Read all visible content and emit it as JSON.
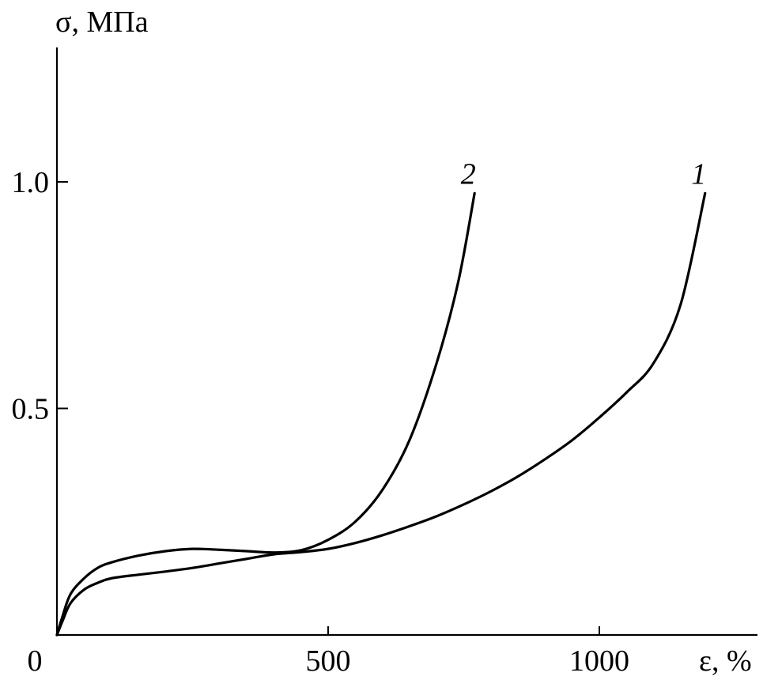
{
  "chart_data": {
    "type": "line",
    "title": "",
    "xlabel": "ε, %",
    "ylabel": "σ, МПа",
    "xlim": [
      0,
      1270
    ],
    "ylim": [
      0,
      1.3
    ],
    "x_ticks": [
      0,
      500,
      1000
    ],
    "x_tick_labels": [
      "0",
      "500",
      "1000"
    ],
    "y_ticks": [
      0.5,
      1.0
    ],
    "y_tick_labels": [
      "0.5",
      "1.0"
    ],
    "grid": false,
    "legend": "none (curves labeled inline)",
    "series": [
      {
        "name": "1",
        "x": [
          0,
          10,
          25,
          50,
          75,
          100,
          150,
          200,
          250,
          300,
          350,
          400,
          450,
          500,
          550,
          600,
          650,
          700,
          750,
          800,
          850,
          900,
          950,
          1000,
          1050,
          1100,
          1150,
          1195
        ],
        "y": [
          0,
          0.03,
          0.07,
          0.1,
          0.115,
          0.125,
          0.133,
          0.14,
          0.148,
          0.158,
          0.168,
          0.178,
          0.183,
          0.19,
          0.203,
          0.22,
          0.24,
          0.262,
          0.288,
          0.317,
          0.35,
          0.388,
          0.43,
          0.48,
          0.535,
          0.6,
          0.73,
          0.975
        ]
      },
      {
        "name": "2",
        "x": [
          0,
          10,
          25,
          50,
          75,
          100,
          150,
          200,
          250,
          300,
          350,
          400,
          450,
          500,
          550,
          600,
          650,
          700,
          740,
          770
        ],
        "y": [
          0,
          0.04,
          0.09,
          0.125,
          0.148,
          0.16,
          0.175,
          0.185,
          0.19,
          0.188,
          0.185,
          0.182,
          0.187,
          0.21,
          0.25,
          0.32,
          0.43,
          0.6,
          0.78,
          0.975
        ]
      }
    ]
  }
}
